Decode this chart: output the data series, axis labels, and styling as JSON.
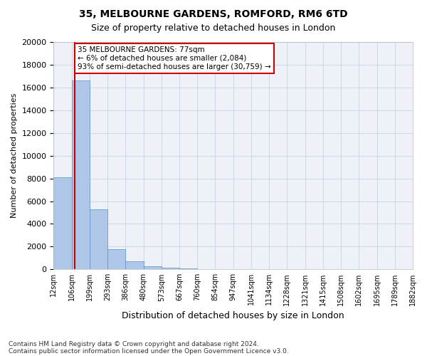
{
  "title1": "35, MELBOURNE GARDENS, ROMFORD, RM6 6TD",
  "title2": "Size of property relative to detached houses in London",
  "xlabel": "Distribution of detached houses by size in London",
  "ylabel": "Number of detached properties",
  "bar_color": "#aec6e8",
  "bar_edge_color": "#5a8fc2",
  "grid_color": "#d0d8e8",
  "background_color": "#eef2f8",
  "bin_labels": [
    "12sqm",
    "106sqm",
    "199sqm",
    "293sqm",
    "386sqm",
    "480sqm",
    "573sqm",
    "667sqm",
    "760sqm",
    "854sqm",
    "947sqm",
    "1041sqm",
    "1134sqm",
    "1228sqm",
    "1321sqm",
    "1415sqm",
    "1508sqm",
    "1602sqm",
    "1695sqm",
    "1789sqm",
    "1882sqm"
  ],
  "bar_values": [
    8100,
    16600,
    5300,
    1800,
    700,
    300,
    150,
    100,
    50,
    0,
    0,
    0,
    0,
    0,
    0,
    0,
    0,
    0,
    0,
    0
  ],
  "ylim": [
    0,
    20000
  ],
  "yticks": [
    0,
    2000,
    4000,
    6000,
    8000,
    10000,
    12000,
    14000,
    16000,
    18000,
    20000
  ],
  "property_line_x": 0.68,
  "property_label": "35 MELBOURNE GARDENS: 77sqm",
  "property_line1": "← 6% of detached houses are smaller (2,084)",
  "property_line2": "93% of semi-detached houses are larger (30,759) →",
  "annotation_box_color": "#ffffff",
  "annotation_box_edge": "#cc0000",
  "property_line_color": "#cc0000",
  "footer1": "Contains HM Land Registry data © Crown copyright and database right 2024.",
  "footer2": "Contains public sector information licensed under the Open Government Licence v3.0."
}
